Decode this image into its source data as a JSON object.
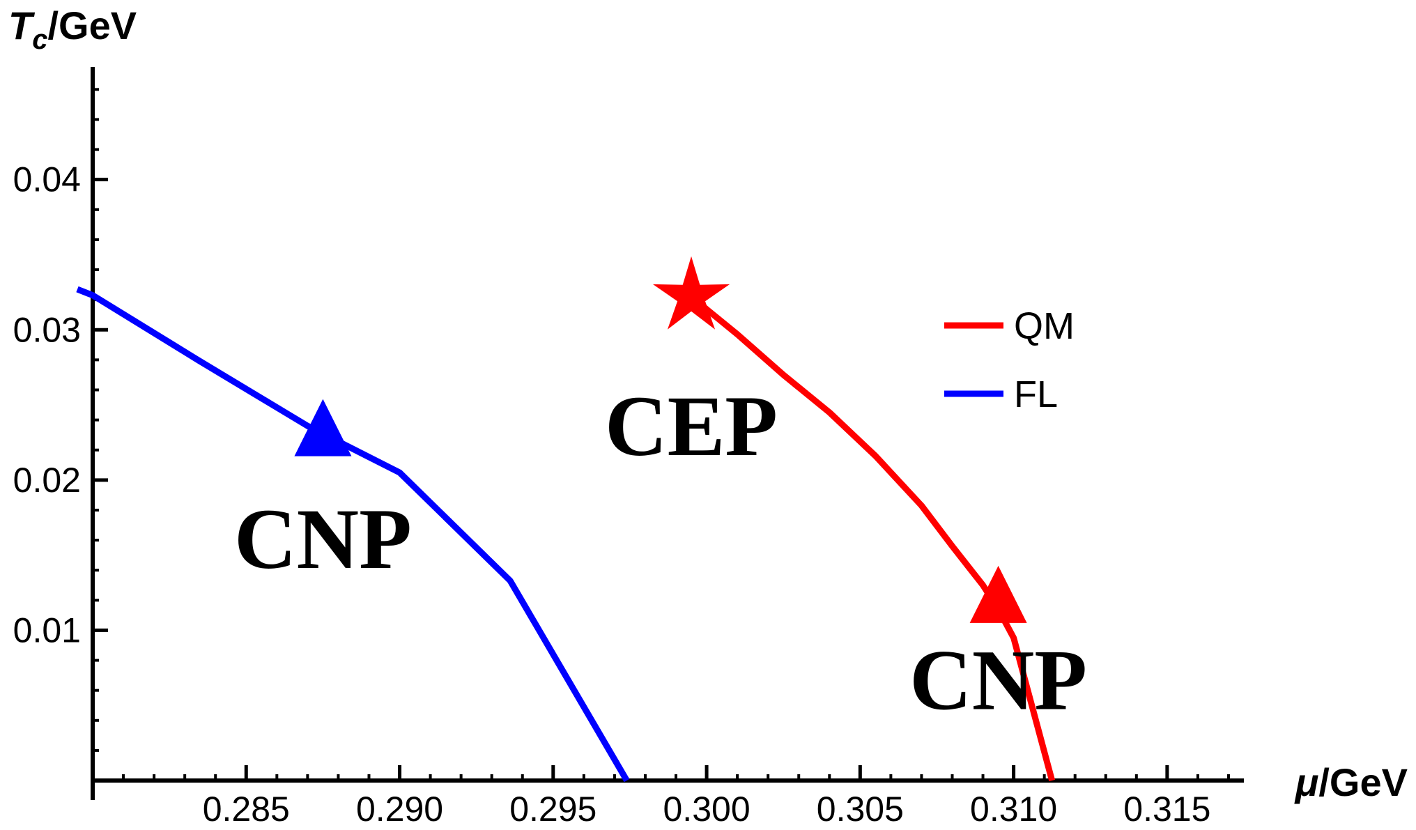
{
  "chart_data": {
    "type": "line",
    "xlabel": "μ/GeV",
    "ylabel_main": "T",
    "ylabel_sub": "c",
    "ylabel_rest": "/GeV",
    "xlim": [
      0.28,
      0.3175
    ],
    "ylim": [
      0,
      0.0475
    ],
    "x_ticks": [
      {
        "value": 0.285,
        "label": "0.285"
      },
      {
        "value": 0.29,
        "label": "0.290"
      },
      {
        "value": 0.295,
        "label": "0.295"
      },
      {
        "value": 0.3,
        "label": "0.300"
      },
      {
        "value": 0.305,
        "label": "0.305"
      },
      {
        "value": 0.31,
        "label": "0.310"
      },
      {
        "value": 0.315,
        "label": "0.315"
      }
    ],
    "y_ticks": [
      {
        "value": 0.01,
        "label": "0.01"
      },
      {
        "value": 0.02,
        "label": "0.02"
      },
      {
        "value": 0.03,
        "label": "0.03"
      },
      {
        "value": 0.04,
        "label": "0.04"
      }
    ],
    "grid": false,
    "legend_position": "right",
    "series": [
      {
        "name": "QM",
        "color": "#ff0000",
        "points": [
          [
            0.2995,
            0.0322
          ],
          [
            0.301,
            0.0297
          ],
          [
            0.3025,
            0.027
          ],
          [
            0.304,
            0.0245
          ],
          [
            0.3055,
            0.0216
          ],
          [
            0.307,
            0.0183
          ],
          [
            0.308,
            0.0156
          ],
          [
            0.309,
            0.013
          ],
          [
            0.3095,
            0.0114
          ],
          [
            0.31,
            0.0095
          ],
          [
            0.31125,
            0.0
          ]
        ]
      },
      {
        "name": "FL",
        "color": "#0000ff",
        "points": [
          [
            0.2795,
            0.0327
          ],
          [
            0.28,
            0.0323
          ],
          [
            0.2835,
            0.0279
          ],
          [
            0.287,
            0.0236
          ],
          [
            0.29,
            0.0205
          ],
          [
            0.2936,
            0.0133
          ],
          [
            0.2974,
            0.0
          ]
        ]
      }
    ],
    "markers": [
      {
        "type": "star",
        "x": 0.2995,
        "y": 0.0322,
        "color": "#ff0000"
      },
      {
        "type": "triangle",
        "x": 0.3095,
        "y": 0.0122,
        "color": "#ff0000"
      },
      {
        "type": "triangle",
        "x": 0.2875,
        "y": 0.0233,
        "color": "#0000ff"
      }
    ],
    "annotations": [
      {
        "text": "CEP",
        "x": 0.2995,
        "y": 0.0237
      },
      {
        "text": "CNP",
        "x": 0.2875,
        "y": 0.0162
      },
      {
        "text": "CNP",
        "x": 0.3095,
        "y": 0.0068
      }
    ]
  }
}
